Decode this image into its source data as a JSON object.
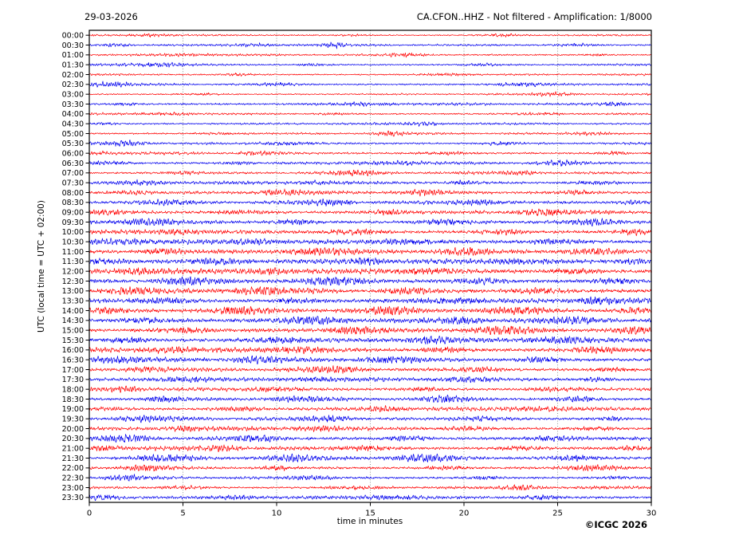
{
  "header": {
    "date": "29-03-2026",
    "title": "CA.CFON..HHZ - Not filtered - Amplification: 1/8000"
  },
  "footer": {
    "copyright": "©ICGC 2026"
  },
  "chart_data": {
    "type": "line",
    "subtype": "helicorder-seismogram",
    "title": "CA.CFON..HHZ - Not filtered - Amplification: 1/8000",
    "date": "29-03-2026",
    "xlabel": "time in minutes",
    "ylabel": "UTC (local time = UTC + 02:00)",
    "xlim": [
      0,
      30
    ],
    "x_ticks": [
      0,
      5,
      10,
      15,
      20,
      25,
      30
    ],
    "grid": "vertical-dotted",
    "legend": "none",
    "minutes_per_row": 30,
    "palette": {
      "red": "#ff0000",
      "blue": "#0000ee"
    },
    "rows_note": "t=row start time (local, UTC+02:00); c=trace color; a=base noise half-amplitude (px, relative ground velocity); b=bursts as [center-minute, width-minutes, extra-peak-amplitude]",
    "rows": [
      {
        "t": "00:00",
        "c": "red",
        "a": 0.8,
        "b": [
          [
            3,
            1.5,
            1.2
          ],
          [
            14,
            1,
            1.0
          ],
          [
            22,
            1.5,
            1.3
          ]
        ]
      },
      {
        "t": "00:30",
        "c": "blue",
        "a": 0.9,
        "b": [
          [
            1.5,
            1,
            1.8
          ],
          [
            9,
            1.5,
            1.2
          ],
          [
            13,
            0.8,
            2.0
          ],
          [
            26,
            1.5,
            1.4
          ]
        ]
      },
      {
        "t": "01:00",
        "c": "red",
        "a": 0.8,
        "b": [
          [
            5,
            2,
            1.2
          ],
          [
            17,
            1.5,
            1.4
          ],
          [
            27,
            1,
            1.2
          ]
        ]
      },
      {
        "t": "01:30",
        "c": "blue",
        "a": 0.9,
        "b": [
          [
            3.5,
            2,
            2.2
          ],
          [
            12,
            1,
            1.2
          ],
          [
            21,
            1.5,
            1.1
          ]
        ]
      },
      {
        "t": "02:00",
        "c": "red",
        "a": 0.8,
        "b": [
          [
            8,
            1,
            1.1
          ],
          [
            19,
            2,
            1.2
          ]
        ]
      },
      {
        "t": "02:30",
        "c": "blue",
        "a": 1.0,
        "b": [
          [
            1,
            1.5,
            1.8
          ],
          [
            10,
            1.5,
            1.5
          ],
          [
            23,
            2,
            1.6
          ]
        ]
      },
      {
        "t": "03:00",
        "c": "red",
        "a": 0.8,
        "b": [
          [
            6,
            1.5,
            1.2
          ],
          [
            25,
            1.5,
            1.3
          ]
        ]
      },
      {
        "t": "03:30",
        "c": "blue",
        "a": 1.0,
        "b": [
          [
            2,
            1,
            1.6
          ],
          [
            15,
            2,
            1.5
          ],
          [
            28,
            1,
            1.5
          ]
        ]
      },
      {
        "t": "04:00",
        "c": "red",
        "a": 0.9,
        "b": [
          [
            4,
            1.5,
            1.3
          ],
          [
            13,
            1,
            1.1
          ],
          [
            24,
            2,
            1.2
          ]
        ]
      },
      {
        "t": "04:30",
        "c": "blue",
        "a": 0.9,
        "b": [
          [
            1,
            1,
            1.4
          ],
          [
            18,
            1.5,
            1.3
          ]
        ]
      },
      {
        "t": "05:00",
        "c": "red",
        "a": 0.9,
        "b": [
          [
            7,
            1.5,
            1.2
          ],
          [
            16,
            1,
            1.3
          ],
          [
            27,
            1.5,
            1.3
          ]
        ]
      },
      {
        "t": "05:30",
        "c": "blue",
        "a": 1.1,
        "b": [
          [
            2,
            1.5,
            1.7
          ],
          [
            11,
            2,
            1.5
          ],
          [
            22,
            1.5,
            1.6
          ]
        ]
      },
      {
        "t": "06:00",
        "c": "red",
        "a": 1.1,
        "b": [
          [
            0.5,
            1,
            1.8
          ],
          [
            9,
            1.5,
            1.4
          ],
          [
            19,
            2,
            1.5
          ],
          [
            28,
            1,
            1.6
          ]
        ]
      },
      {
        "t": "06:30",
        "c": "blue",
        "a": 1.2,
        "b": [
          [
            1,
            1.5,
            2.0
          ],
          [
            8,
            1,
            1.6
          ],
          [
            16,
            2,
            1.7
          ],
          [
            25,
            1.5,
            1.8
          ]
        ]
      },
      {
        "t": "07:00",
        "c": "red",
        "a": 1.1,
        "b": [
          [
            5,
            1.5,
            1.5
          ],
          [
            14,
            2,
            1.6
          ],
          [
            23,
            1.5,
            1.5
          ]
        ]
      },
      {
        "t": "07:30",
        "c": "blue",
        "a": 1.3,
        "b": [
          [
            3,
            2,
            1.8
          ],
          [
            12,
            1.5,
            1.7
          ],
          [
            20,
            1,
            1.9
          ],
          [
            27,
            2,
            1.7
          ]
        ]
      },
      {
        "t": "08:00",
        "c": "red",
        "a": 1.4,
        "b": [
          [
            2,
            1.5,
            1.9
          ],
          [
            10,
            2,
            1.8
          ],
          [
            18,
            1.5,
            2.0
          ],
          [
            26,
            1.5,
            1.8
          ]
        ]
      },
      {
        "t": "08:30",
        "c": "blue",
        "a": 1.5,
        "b": [
          [
            4,
            2,
            2.2
          ],
          [
            13,
            1.5,
            2.0
          ],
          [
            21,
            2,
            2.1
          ],
          [
            29,
            1,
            2.0
          ]
        ]
      },
      {
        "t": "09:00",
        "c": "red",
        "a": 1.7,
        "b": [
          [
            1,
            1.5,
            2.5
          ],
          [
            8,
            2,
            2.2
          ],
          [
            16,
            1.5,
            2.4
          ],
          [
            24,
            2,
            2.3
          ]
        ]
      },
      {
        "t": "09:30",
        "c": "blue",
        "a": 1.8,
        "b": [
          [
            3,
            2,
            2.8
          ],
          [
            11,
            1.5,
            2.4
          ],
          [
            19,
            2,
            2.6
          ],
          [
            27,
            1.5,
            2.5
          ]
        ]
      },
      {
        "t": "10:00",
        "c": "red",
        "a": 1.8,
        "b": [
          [
            5,
            1.5,
            2.4
          ],
          [
            14,
            2,
            2.6
          ],
          [
            22,
            1.5,
            2.5
          ],
          [
            29,
            1,
            2.4
          ]
        ]
      },
      {
        "t": "10:30",
        "c": "blue",
        "a": 1.9,
        "b": [
          [
            2,
            2,
            2.8
          ],
          [
            9,
            1.5,
            2.5
          ],
          [
            17,
            2,
            2.7
          ],
          [
            25,
            2,
            2.8
          ]
        ]
      },
      {
        "t": "11:00",
        "c": "red",
        "a": 2.0,
        "b": [
          [
            4,
            1.5,
            2.8
          ],
          [
            12,
            2,
            2.9
          ],
          [
            20,
            1.5,
            2.7
          ],
          [
            27,
            2,
            2.9
          ]
        ]
      },
      {
        "t": "11:30",
        "c": "blue",
        "a": 2.0,
        "b": [
          [
            1,
            1.5,
            3.2
          ],
          [
            7,
            2,
            2.8
          ],
          [
            15,
            1.5,
            3.0
          ],
          [
            23,
            2,
            2.9
          ],
          [
            29,
            1,
            2.8
          ]
        ]
      },
      {
        "t": "12:00",
        "c": "red",
        "a": 2.1,
        "b": [
          [
            3,
            2,
            3.0
          ],
          [
            10,
            1.5,
            2.8
          ],
          [
            18,
            2,
            3.1
          ],
          [
            26,
            1.5,
            2.9
          ]
        ]
      },
      {
        "t": "12:30",
        "c": "blue",
        "a": 2.1,
        "b": [
          [
            5,
            1.5,
            2.9
          ],
          [
            13,
            2,
            3.1
          ],
          [
            21,
            1.5,
            3.0
          ],
          [
            28,
            1.5,
            3.0
          ]
        ]
      },
      {
        "t": "13:00",
        "c": "red",
        "a": 2.1,
        "b": [
          [
            2,
            1.5,
            3.0
          ],
          [
            9,
            2,
            3.0
          ],
          [
            17,
            1.5,
            2.9
          ],
          [
            24,
            2,
            3.1
          ]
        ]
      },
      {
        "t": "13:30",
        "c": "blue",
        "a": 2.1,
        "b": [
          [
            4,
            2,
            3.1
          ],
          [
            11,
            1.5,
            2.9
          ],
          [
            19,
            2,
            3.0
          ],
          [
            27,
            1.5,
            3.2
          ]
        ]
      },
      {
        "t": "14:00",
        "c": "red",
        "a": 2.1,
        "b": [
          [
            1,
            1.5,
            2.9
          ],
          [
            8,
            2,
            3.1
          ],
          [
            16,
            1.5,
            3.0
          ],
          [
            23,
            2,
            2.9
          ],
          [
            29,
            1,
            3.0
          ]
        ]
      },
      {
        "t": "14:30",
        "c": "blue",
        "a": 2.1,
        "b": [
          [
            3,
            1.5,
            3.0
          ],
          [
            12,
            2,
            3.2
          ],
          [
            20,
            1.5,
            2.9
          ],
          [
            26,
            2,
            3.0
          ]
        ]
      },
      {
        "t": "15:00",
        "c": "red",
        "a": 2.0,
        "b": [
          [
            5,
            2,
            2.9
          ],
          [
            14,
            1.5,
            3.0
          ],
          [
            22,
            2,
            3.1
          ],
          [
            29,
            1,
            2.8
          ]
        ]
      },
      {
        "t": "15:30",
        "c": "blue",
        "a": 2.0,
        "b": [
          [
            2,
            1.5,
            3.0
          ],
          [
            10,
            2,
            2.8
          ],
          [
            18,
            1.5,
            3.1
          ],
          [
            25,
            2,
            2.9
          ]
        ]
      },
      {
        "t": "16:00",
        "c": "red",
        "a": 2.0,
        "b": [
          [
            4,
            1.5,
            2.8
          ],
          [
            11,
            2,
            3.0
          ],
          [
            19,
            1.5,
            2.8
          ],
          [
            27,
            2,
            3.0
          ]
        ]
      },
      {
        "t": "16:30",
        "c": "blue",
        "a": 1.9,
        "b": [
          [
            1,
            2,
            2.8
          ],
          [
            9,
            1.5,
            2.6
          ],
          [
            16,
            2,
            2.7
          ],
          [
            24,
            1.5,
            2.8
          ]
        ]
      },
      {
        "t": "17:00",
        "c": "red",
        "a": 1.6,
        "b": [
          [
            3,
            1.5,
            2.2
          ],
          [
            13,
            2,
            2.3
          ],
          [
            21,
            1.5,
            2.2
          ],
          [
            28,
            1.5,
            2.3
          ]
        ]
      },
      {
        "t": "17:30",
        "c": "blue",
        "a": 1.6,
        "b": [
          [
            5,
            2,
            2.3
          ],
          [
            12,
            1.5,
            2.2
          ],
          [
            20,
            2,
            2.4
          ],
          [
            27,
            1,
            2.2
          ]
        ]
      },
      {
        "t": "18:00",
        "c": "red",
        "a": 1.5,
        "b": [
          [
            2,
            1.5,
            2.1
          ],
          [
            10,
            2,
            2.2
          ],
          [
            18,
            1.5,
            2.0
          ],
          [
            25,
            2,
            2.2
          ]
        ]
      },
      {
        "t": "18:30",
        "c": "blue",
        "a": 1.5,
        "b": [
          [
            4,
            1.5,
            2.2
          ],
          [
            11,
            2,
            2.0
          ],
          [
            19,
            1.5,
            2.3
          ],
          [
            26,
            1.5,
            2.1
          ]
        ]
      },
      {
        "t": "19:00",
        "c": "red",
        "a": 1.5,
        "b": [
          [
            1,
            1.5,
            2.0
          ],
          [
            8,
            2,
            2.1
          ],
          [
            16,
            1.5,
            2.2
          ],
          [
            24,
            2,
            2.0
          ]
        ]
      },
      {
        "t": "19:30",
        "c": "blue",
        "a": 1.5,
        "b": [
          [
            3,
            2,
            2.1
          ],
          [
            13,
            1.5,
            2.2
          ],
          [
            21,
            2,
            2.0
          ],
          [
            28,
            1,
            2.2
          ]
        ]
      },
      {
        "t": "20:00",
        "c": "red",
        "a": 1.5,
        "b": [
          [
            5,
            1.5,
            2.2
          ],
          [
            12,
            2,
            2.1
          ],
          [
            20,
            1.5,
            2.3
          ],
          [
            27,
            1.5,
            2.1
          ]
        ]
      },
      {
        "t": "20:30",
        "c": "blue",
        "a": 1.7,
        "b": [
          [
            2,
            1.5,
            2.6
          ],
          [
            9,
            2,
            2.4
          ],
          [
            17,
            1.5,
            2.7
          ],
          [
            25,
            2,
            2.5
          ]
        ]
      },
      {
        "t": "21:00",
        "c": "red",
        "a": 1.6,
        "b": [
          [
            1,
            1,
            2.8
          ],
          [
            7,
            1.5,
            2.4
          ],
          [
            15,
            2,
            2.5
          ],
          [
            23,
            1.5,
            2.6
          ],
          [
            29,
            1,
            2.4
          ]
        ]
      },
      {
        "t": "21:30",
        "c": "blue",
        "a": 1.7,
        "b": [
          [
            4,
            2,
            2.7
          ],
          [
            11,
            1.5,
            2.5
          ],
          [
            18,
            2,
            2.8
          ],
          [
            26,
            1.5,
            2.6
          ]
        ]
      },
      {
        "t": "22:00",
        "c": "red",
        "a": 1.4,
        "b": [
          [
            3,
            1.5,
            2.4
          ],
          [
            10,
            1,
            2.0
          ],
          [
            19,
            1.5,
            2.1
          ],
          [
            27,
            2,
            2.0
          ]
        ]
      },
      {
        "t": "22:30",
        "c": "blue",
        "a": 1.2,
        "b": [
          [
            2,
            1.5,
            1.8
          ],
          [
            12,
            2,
            1.7
          ],
          [
            21,
            1.5,
            1.9
          ],
          [
            28,
            1,
            1.8
          ]
        ]
      },
      {
        "t": "23:00",
        "c": "red",
        "a": 1.2,
        "b": [
          [
            5,
            1.5,
            1.8
          ],
          [
            14,
            2,
            1.7
          ],
          [
            23,
            1.5,
            1.9
          ]
        ]
      },
      {
        "t": "23:30",
        "c": "blue",
        "a": 1.3,
        "b": [
          [
            0.8,
            1.5,
            2.6
          ],
          [
            8,
            1.5,
            1.9
          ],
          [
            16,
            2,
            2.0
          ],
          [
            24,
            1.5,
            2.1
          ]
        ]
      }
    ]
  }
}
